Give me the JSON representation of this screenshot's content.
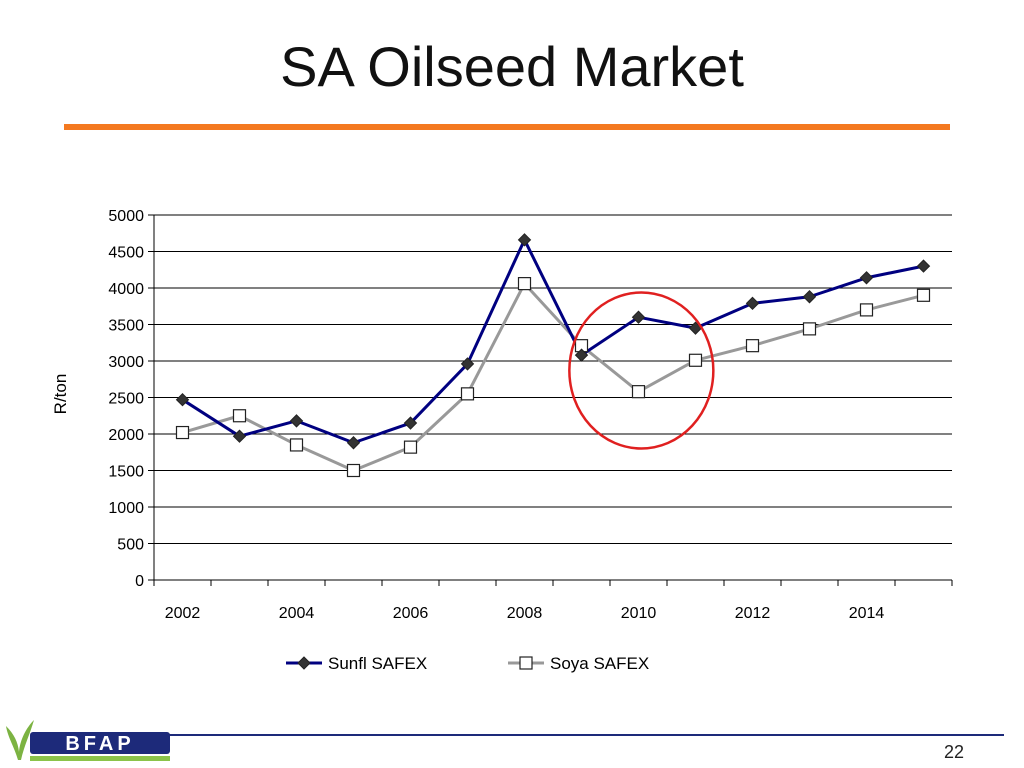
{
  "slide": {
    "title": "SA Oilseed Market",
    "page_number": "22",
    "accent_color": "#f47920",
    "footer_color": "#1d2a7a",
    "logo_text": "BFAP"
  },
  "chart_data": {
    "type": "line",
    "title": "",
    "xlabel": "",
    "ylabel": "R/ton",
    "x": [
      2002,
      2003,
      2004,
      2005,
      2006,
      2007,
      2008,
      2009,
      2010,
      2011,
      2012,
      2013,
      2014,
      2015
    ],
    "x_tick_labels": [
      "2002",
      "2004",
      "2006",
      "2008",
      "2010",
      "2012",
      "2014"
    ],
    "xlim": [
      2001.5,
      2015.5
    ],
    "ylim": [
      0,
      5000
    ],
    "y_ticks": [
      0,
      500,
      1000,
      1500,
      2000,
      2500,
      3000,
      3500,
      4000,
      4500,
      5000
    ],
    "grid": "horizontal",
    "legend_position": "bottom",
    "series": [
      {
        "name": "Sunfl SAFEX",
        "color": "#000080",
        "marker": "diamond",
        "values": [
          2470,
          1970,
          2180,
          1880,
          2150,
          2960,
          4660,
          3080,
          3600,
          3450,
          3790,
          3880,
          4140,
          4300
        ]
      },
      {
        "name": "Soya SAFEX",
        "color": "#999999",
        "marker": "square-open",
        "values": [
          2020,
          2250,
          1850,
          1500,
          1820,
          2550,
          4060,
          3210,
          2580,
          3010,
          3210,
          3440,
          3700,
          3900
        ]
      }
    ],
    "annotation": {
      "type": "circle",
      "color": "#e02020",
      "center_x": 2010.05,
      "center_y": 2870
    }
  }
}
